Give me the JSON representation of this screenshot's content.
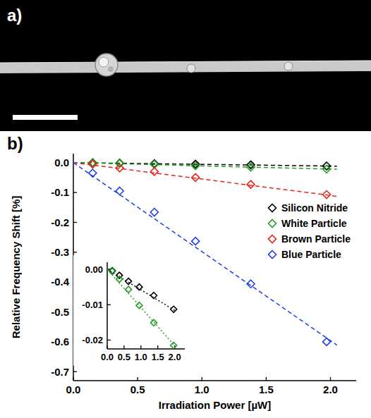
{
  "panel_a": {
    "label": "a)"
  },
  "chart_data": [
    {
      "type": "scatter",
      "panel_label": "b)",
      "x_label": "Irradiation Power [µW]",
      "y_label": "Relative Frequency Shift [%]",
      "x": [
        0.15,
        0.36,
        0.63,
        0.95,
        1.38,
        1.97
      ],
      "xlim": [
        0,
        2.2
      ],
      "xticks": [
        {
          "value": 0,
          "label": "0.0"
        },
        0.5,
        {
          "value": 1,
          "label": "1.0"
        },
        1.5,
        {
          "value": 2,
          "label": "2.0"
        }
      ],
      "ylim": [
        -0.73,
        0.03
      ],
      "yticks": [
        {
          "value": 0,
          "label": "0.0"
        },
        -0.1,
        -0.2,
        -0.3,
        -0.4,
        -0.5,
        -0.6,
        -0.7
      ],
      "marker": "diamond",
      "line_style": "dashed",
      "legend": "right",
      "series": [
        {
          "name": "Silicon Nitride",
          "color": "#000000",
          "values": [
            -0.0004,
            -0.0017,
            -0.0034,
            -0.005,
            -0.0074,
            -0.0113
          ],
          "fit_slope": -0.0058
        },
        {
          "name": "White Particle",
          "color": "#22a022",
          "values": [
            -0.0006,
            -0.0028,
            -0.0057,
            -0.0102,
            -0.0151,
            -0.0215
          ],
          "fit_slope": -0.0108
        },
        {
          "name": "Brown Particle",
          "color": "#e8251c",
          "values": [
            -0.005,
            -0.018,
            -0.03,
            -0.05,
            -0.073,
            -0.107
          ],
          "fit_slope": -0.055
        },
        {
          "name": "Blue Particle",
          "color": "#1f3fe6",
          "values": [
            -0.035,
            -0.095,
            -0.166,
            -0.263,
            -0.406,
            -0.6
          ],
          "fit_slope": -0.298
        }
      ]
    },
    {
      "type": "scatter",
      "x": [
        0.15,
        0.36,
        0.63,
        0.95,
        1.38,
        1.97
      ],
      "xlim": [
        0,
        2.3
      ],
      "xticks": [
        {
          "value": 0,
          "label": "0.0"
        },
        0.5,
        {
          "value": 1,
          "label": "1.0"
        },
        1.5,
        {
          "value": 2,
          "label": "2.0"
        }
      ],
      "ylim": [
        -0.0225,
        0.002
      ],
      "yticks": [
        {
          "value": 0,
          "label": "0.00"
        },
        -0.01,
        -0.02
      ],
      "marker": "diamond",
      "line_style": "dotted",
      "series": [
        {
          "name": "Silicon Nitride",
          "color": "#000000",
          "values": [
            -0.0004,
            -0.0017,
            -0.0034,
            -0.005,
            -0.0074,
            -0.0113
          ],
          "fit_slope": -0.0058
        },
        {
          "name": "White Particle",
          "color": "#22a022",
          "values": [
            -0.0006,
            -0.0028,
            -0.0057,
            -0.0102,
            -0.0151,
            -0.0215
          ],
          "fit_slope": -0.0108
        }
      ]
    }
  ]
}
